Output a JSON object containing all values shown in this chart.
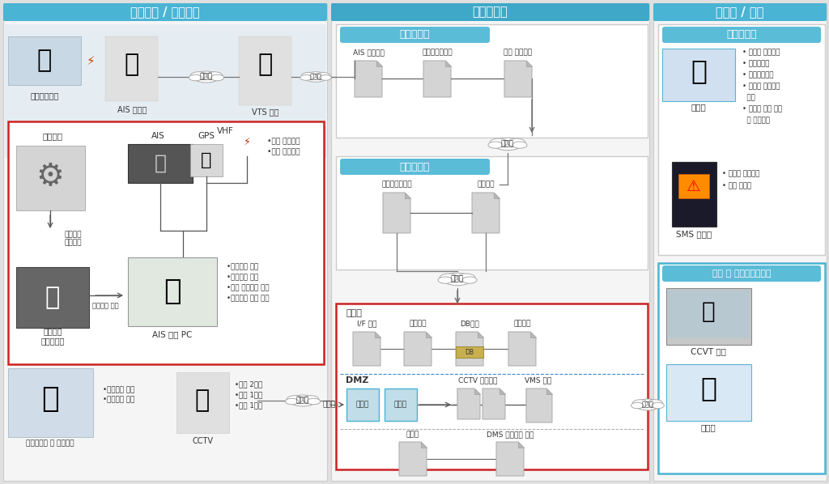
{
  "bg_color": "#e0e0e0",
  "section_bg": "#f8f8f8",
  "white": "#ffffff",
  "header_blue": "#4ab4d4",
  "header_blue2": "#3aa0c0",
  "sub_header_blue": "#5bbcd8",
  "red_border": "#cc2222",
  "blue_border": "#4ab4d4",
  "gray_border": "#bbbbbb",
  "text_dark": "#222222",
  "text_gray": "#444444",
  "cloud_fill": "#f0f0f0",
  "server_fill": "#d8d8d8",
  "server_fold": "#b8b8b8",
  "title_left": "정보수집 / 정보연계",
  "title_center": "운영시스템",
  "title_right": "서비스 / 활용",
  "sub_haeyang": "해양수산부",
  "sub_gukmin": "국민안전처",
  "sub_server": "서버팜",
  "sub_dmz": "DMZ",
  "sub_pyegi": "폐기물업체",
  "sub_bonbu": "본부 및 지방해양수산청",
  "label_ship": "폐기물운반선",
  "label_ais": "AIS 기지국",
  "label_vts": "VTS 센터",
  "label_jeon": "전용선",
  "label_jeongbu1": "정부망",
  "label_jeongbu2": "정부망",
  "label_jeongbu3": "정부망",
  "label_internet1": "인터넷",
  "label_internet2": "인터넷",
  "label_valve": "배출밸브",
  "label_valve_info": "배출밸브\n개패정보",
  "label_terminal": "배출밸브\n감시단말기",
  "label_transmit": "개패정보 전송",
  "label_ais_device": "AIS",
  "label_gps": "GPS",
  "label_vhf": "VHF",
  "label_vhf_info1": "•선박 위치정보",
  "label_vhf_info2": "•밸브 개패정보",
  "label_ais_pc": "AIS 연계 PC",
  "label_pc_info1": "•전자해도 탑재",
  "label_pc_info2": "•배출해역 표출",
  "label_pc_info3": "•선박 위치정보 표출",
  "label_pc_info4": "•배출밸브 상태 확인",
  "label_truck": "폐기물수집 및 운반차량",
  "label_cctv": "CCTV",
  "label_truck_info1": "•출입차량 녹화",
  "label_truck_info2": "•차량번호 인식",
  "label_cctv_info1": "•인천 2개소",
  "label_cctv_info2": "•울산 1개소",
  "label_cctv_info3": "•포항 1개소",
  "label_ais_server": "AIS 수집서버",
  "label_gateway": "통합게이트웨이",
  "label_haekyung": "해경 연동장치",
  "label_gw2": "통합게이트웨이",
  "label_link": "연동장치",
  "label_if": "I/F 서버",
  "label_analysis": "분석서버",
  "label_db": "DB서버",
  "label_backup": "백업서버",
  "label_router": "라우터",
  "label_firewall": "방화벽",
  "label_cctv_ctrl": "CCTV 지역제어",
  "label_vms": "VMS 서버",
  "label_web": "웹서버",
  "label_dms": "DMS 스트리밍 서버",
  "label_web_portal": "웹포탈",
  "label_sms": "SMS 서비스",
  "label_ccvt": "CCVT 영상",
  "label_web_portal2": "웹포탈",
  "bullet_web1": "• 폐기물 인계정보",
  "bullet_web2": "• 환경부담금",
  "bullet_web3": "• 해양배출통계",
  "bullet_web4": "• 폐기물 업체정보",
  "bullet_web5": "  관리",
  "bullet_web6": "• 실시간 선박 위치",
  "bullet_web7": "  및 배출정보",
  "bullet_sms1": "• 폐기물 전자민원",
  "bullet_sms2": "• 민원 서비스"
}
